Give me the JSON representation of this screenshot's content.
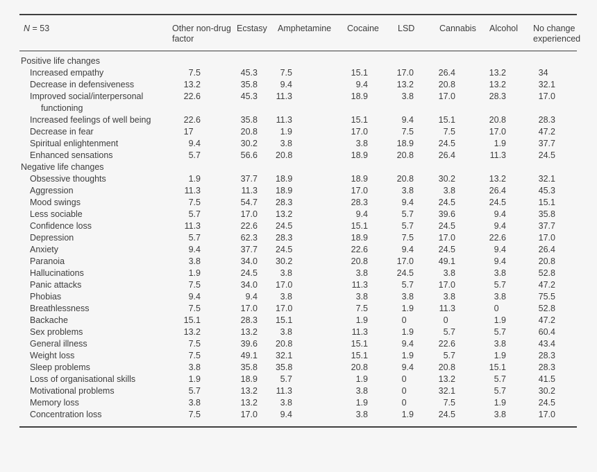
{
  "table": {
    "n_label": {
      "italic": "N",
      "rest": " = 53"
    },
    "columns": [
      "Other non-drug factor",
      "Ecstasy",
      "Amphetamine",
      "Cocaine",
      "LSD",
      "Cannabis",
      "Alcohol",
      "No change experienced"
    ],
    "sections": [
      {
        "label": "Positive life changes",
        "rows": [
          {
            "label": "Increased empathy",
            "values": [
              "7.5",
              "45.3",
              "7.5",
              "15.1",
              "17.0",
              "26.4",
              "13.2",
              "34"
            ]
          },
          {
            "label": "Decrease in defensiveness",
            "values": [
              "13.2",
              "35.8",
              "9.4",
              "9.4",
              "13.2",
              "20.8",
              "13.2",
              "32.1"
            ]
          },
          {
            "label": "Improved social/interpersonal functioning",
            "values": [
              "22.6",
              "45.3",
              "11.3",
              "18.9",
              "3.8",
              "17.0",
              "28.3",
              "17.0"
            ]
          },
          {
            "label": "Increased feelings of well being",
            "values": [
              "22.6",
              "35.8",
              "11.3",
              "15.1",
              "9.4",
              "15.1",
              "20.8",
              "28.3"
            ]
          },
          {
            "label": "Decrease in fear",
            "values": [
              "17",
              "20.8",
              "1.9",
              "17.0",
              "7.5",
              "7.5",
              "17.0",
              "47.2"
            ]
          },
          {
            "label": "Spiritual enlightenment",
            "values": [
              "9.4",
              "30.2",
              "3.8",
              "3.8",
              "18.9",
              "24.5",
              "1.9",
              "37.7"
            ]
          },
          {
            "label": "Enhanced sensations",
            "values": [
              "5.7",
              "56.6",
              "20.8",
              "18.9",
              "20.8",
              "26.4",
              "11.3",
              "24.5"
            ]
          }
        ]
      },
      {
        "label": "Negative life changes",
        "rows": [
          {
            "label": "Obsessive thoughts",
            "values": [
              "1.9",
              "37.7",
              "18.9",
              "18.9",
              "20.8",
              "30.2",
              "13.2",
              "32.1"
            ]
          },
          {
            "label": "Aggression",
            "values": [
              "11.3",
              "11.3",
              "18.9",
              "17.0",
              "3.8",
              "3.8",
              "26.4",
              "45.3"
            ]
          },
          {
            "label": "Mood swings",
            "values": [
              "7.5",
              "54.7",
              "28.3",
              "28.3",
              "9.4",
              "24.5",
              "24.5",
              "15.1"
            ]
          },
          {
            "label": "Less sociable",
            "values": [
              "5.7",
              "17.0",
              "13.2",
              "9.4",
              "5.7",
              "39.6",
              "9.4",
              "35.8"
            ]
          },
          {
            "label": "Confidence loss",
            "values": [
              "11.3",
              "22.6",
              "24.5",
              "15.1",
              "5.7",
              "24.5",
              "9.4",
              "37.7"
            ]
          },
          {
            "label": "Depression",
            "values": [
              "5.7",
              "62.3",
              "28.3",
              "18.9",
              "7.5",
              "17.0",
              "22.6",
              "17.0"
            ]
          },
          {
            "label": "Anxiety",
            "values": [
              "9.4",
              "37.7",
              "24.5",
              "22.6",
              "9.4",
              "24.5",
              "9.4",
              "26.4"
            ]
          },
          {
            "label": "Paranoia",
            "values": [
              "3.8",
              "34.0",
              "30.2",
              "20.8",
              "17.0",
              "49.1",
              "9.4",
              "20.8"
            ]
          },
          {
            "label": "Hallucinations",
            "values": [
              "1.9",
              "24.5",
              "3.8",
              "3.8",
              "24.5",
              "3.8",
              "3.8",
              "52.8"
            ]
          },
          {
            "label": "Panic attacks",
            "values": [
              "7.5",
              "34.0",
              "17.0",
              "11.3",
              "5.7",
              "17.0",
              "5.7",
              "47.2"
            ]
          },
          {
            "label": "Phobias",
            "values": [
              "9.4",
              "9.4",
              "3.8",
              "3.8",
              "3.8",
              "3.8",
              "3.8",
              "75.5"
            ]
          },
          {
            "label": "Breathlessness",
            "values": [
              "7.5",
              "17.0",
              "17.0",
              "7.5",
              "1.9",
              "11.3",
              "0",
              "52.8"
            ]
          },
          {
            "label": "Backache",
            "values": [
              "15.1",
              "28.3",
              "15.1",
              "1.9",
              "0",
              "0",
              "1.9",
              "47.2"
            ]
          },
          {
            "label": "Sex problems",
            "values": [
              "13.2",
              "13.2",
              "3.8",
              "11.3",
              "1.9",
              "5.7",
              "5.7",
              "60.4"
            ]
          },
          {
            "label": "General illness",
            "values": [
              "7.5",
              "39.6",
              "20.8",
              "15.1",
              "9.4",
              "22.6",
              "3.8",
              "43.4"
            ]
          },
          {
            "label": "Weight loss",
            "values": [
              "7.5",
              "49.1",
              "32.1",
              "15.1",
              "1.9",
              "5.7",
              "1.9",
              "28.3"
            ]
          },
          {
            "label": "Sleep problems",
            "values": [
              "3.8",
              "35.8",
              "35.8",
              "20.8",
              "9.4",
              "20.8",
              "15.1",
              "28.3"
            ]
          },
          {
            "label": "Loss of organisational skills",
            "values": [
              "1.9",
              "18.9",
              "5.7",
              "1.9",
              "0",
              "13.2",
              "5.7",
              "41.5"
            ]
          },
          {
            "label": "Motivational problems",
            "values": [
              "5.7",
              "13.2",
              "11.3",
              "3.8",
              "0",
              "32.1",
              "5.7",
              "30.2"
            ]
          },
          {
            "label": "Memory loss",
            "values": [
              "3.8",
              "13.2",
              "3.8",
              "1.9",
              "0",
              "7.5",
              "1.9",
              "24.5"
            ]
          },
          {
            "label": "Concentration loss",
            "values": [
              "7.5",
              "17.0",
              "9.4",
              "3.8",
              "1.9",
              "24.5",
              "3.8",
              "17.0"
            ]
          }
        ]
      }
    ],
    "colors": {
      "background": "#f6f6f6",
      "text": "#3c3c3c",
      "rule": "#3f3f3f"
    }
  }
}
